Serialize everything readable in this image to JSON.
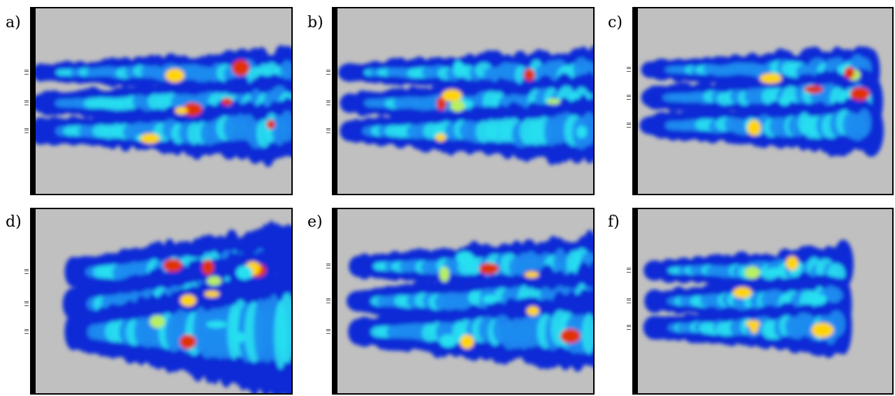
{
  "panels": [
    {
      "id": "a",
      "label": "a)"
    },
    {
      "id": "b",
      "label": "b)"
    },
    {
      "id": "c",
      "label": "c)"
    },
    {
      "id": "d",
      "label": "d)"
    },
    {
      "id": "e",
      "label": "e)"
    },
    {
      "id": "f",
      "label": "f)"
    }
  ],
  "colors": {
    "background": "#c0c0c0",
    "low": "#0a2bd6",
    "mid_low": "#1f8cf0",
    "mid": "#28e0f0",
    "mid_high": "#b8f060",
    "high": "#ffd400",
    "peak": "#e03000"
  }
}
